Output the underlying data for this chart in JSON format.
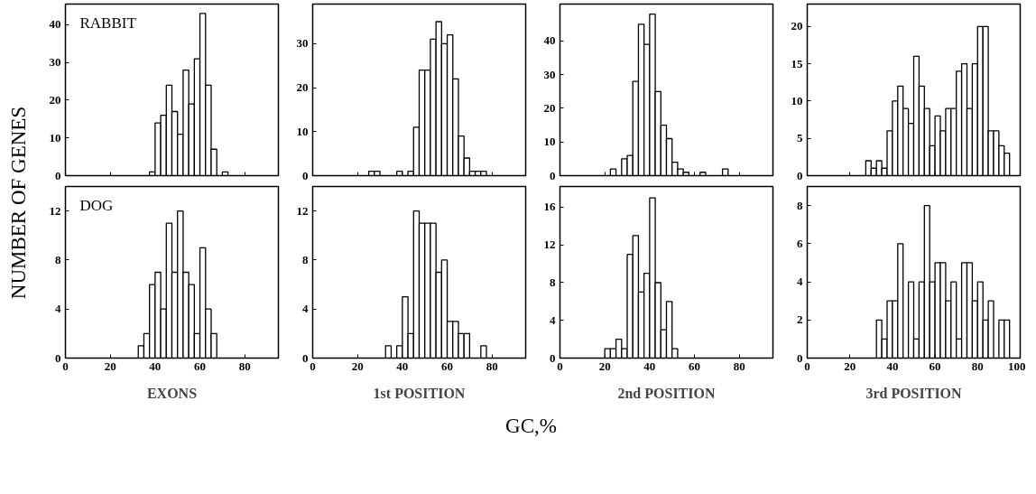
{
  "chart_data": [
    {
      "type": "histogram",
      "ylabel": "NUMBER OF GENES",
      "annotations": [
        "RABBIT"
      ],
      "bins": [
        37.5,
        40,
        42.5,
        45,
        47.5,
        50,
        52.5,
        55,
        57.5,
        60,
        62.5,
        65,
        67.5,
        70,
        72.5
      ],
      "values": [
        1,
        14,
        16,
        24,
        17,
        11,
        28,
        19,
        31,
        43,
        24,
        7,
        0,
        1
      ],
      "xlim": [
        0,
        95
      ],
      "ylim": [
        0,
        45.5
      ],
      "xticks": [
        0,
        20,
        40,
        60,
        80
      ],
      "yticks": [
        0,
        10,
        20,
        30,
        40
      ],
      "tick_labels": "y",
      "color": "#ffffff"
    },
    {
      "type": "histogram",
      "bins": [
        25,
        27.5,
        30,
        32.5,
        35,
        37.5,
        40,
        42.5,
        45,
        47.5,
        50,
        52.5,
        55,
        57.5,
        60,
        62.5,
        65,
        67.5,
        70,
        72.5,
        75,
        77.5
      ],
      "values": [
        1,
        1,
        0,
        0,
        0,
        1,
        0,
        1,
        11,
        24,
        24,
        31,
        35,
        30,
        32,
        22,
        9,
        4,
        1,
        1,
        1
      ],
      "xlim": [
        0,
        95
      ],
      "ylim": [
        0,
        39
      ],
      "xticks": [
        0,
        20,
        40,
        60,
        80
      ],
      "yticks": [
        0,
        10,
        20,
        30
      ],
      "tick_labels": "y",
      "color": "#ffffff"
    },
    {
      "type": "histogram",
      "bins": [
        22.5,
        25,
        27.5,
        30,
        32.5,
        35,
        37.5,
        40,
        42.5,
        45,
        47.5,
        50,
        52.5,
        55,
        57.5,
        60,
        62.5,
        65,
        67.5,
        70,
        72.5,
        75
      ],
      "values": [
        2,
        0,
        5,
        6,
        28,
        45,
        39,
        48,
        25,
        15,
        11,
        4,
        2,
        1,
        0,
        0,
        1,
        0,
        0,
        0,
        2
      ],
      "xlim": [
        0,
        95
      ],
      "ylim": [
        0,
        51
      ],
      "xticks": [
        0,
        20,
        40,
        60,
        80
      ],
      "yticks": [
        0,
        10,
        20,
        30,
        40
      ],
      "tick_labels": "y",
      "color": "#ffffff"
    },
    {
      "type": "histogram",
      "bins": [
        27.5,
        30,
        32.5,
        35,
        37.5,
        40,
        42.5,
        45,
        47.5,
        50,
        52.5,
        55,
        57.5,
        60,
        62.5,
        65,
        67.5,
        70,
        72.5,
        75,
        77.5,
        80,
        82.5,
        85,
        87.5,
        90,
        92.5,
        95
      ],
      "values": [
        2,
        1,
        2,
        1,
        6,
        10,
        12,
        9,
        7,
        16,
        12,
        9,
        4,
        8,
        6,
        9,
        9,
        14,
        15,
        9,
        15,
        20,
        20,
        6,
        6,
        4,
        3
      ],
      "xlim": [
        0,
        100
      ],
      "ylim": [
        0,
        23
      ],
      "xticks": [
        0,
        20,
        40,
        60,
        80,
        100
      ],
      "yticks": [
        0,
        5,
        10,
        15,
        20
      ],
      "tick_labels": "y",
      "color": "#ffffff"
    },
    {
      "type": "histogram",
      "xlabel": "EXONS",
      "annotations": [
        "DOG",
        "GC,%"
      ],
      "bins": [
        32.5,
        35,
        37.5,
        40,
        42.5,
        45,
        47.5,
        50,
        52.5,
        55,
        57.5,
        60,
        62.5,
        65,
        67.5
      ],
      "values": [
        1,
        2,
        6,
        7,
        4,
        11,
        7,
        12,
        7,
        6,
        2,
        9,
        4,
        2
      ],
      "xlim": [
        0,
        95
      ],
      "ylim": [
        0,
        14
      ],
      "xticks": [
        0,
        20,
        40,
        60,
        80
      ],
      "yticks": [
        0,
        4,
        8,
        12
      ],
      "color": "#ffffff"
    },
    {
      "type": "histogram",
      "xlabel": "1st POSITION",
      "bins": [
        32.5,
        35,
        37.5,
        40,
        42.5,
        45,
        47.5,
        50,
        52.5,
        55,
        57.5,
        60,
        62.5,
        65,
        67.5,
        70,
        72.5,
        75,
        77.5
      ],
      "values": [
        1,
        0,
        1,
        5,
        2,
        12,
        11,
        11,
        11,
        7,
        8,
        3,
        3,
        2,
        2,
        0,
        0,
        1
      ],
      "xlim": [
        0,
        95
      ],
      "ylim": [
        0,
        14
      ],
      "xticks": [
        0,
        20,
        40,
        60,
        80
      ],
      "yticks": [
        0,
        4,
        8,
        12
      ],
      "color": "#ffffff"
    },
    {
      "type": "histogram",
      "xlabel": "2nd POSITION",
      "bins": [
        20,
        22.5,
        25,
        27.5,
        30,
        32.5,
        35,
        37.5,
        40,
        42.5,
        45,
        47.5,
        50,
        52.5
      ],
      "values": [
        1,
        1,
        2,
        1,
        11,
        13,
        7,
        9,
        17,
        8,
        3,
        6,
        1
      ],
      "xlim": [
        0,
        95
      ],
      "ylim": [
        0,
        18.2
      ],
      "xticks": [
        0,
        20,
        40,
        60,
        80
      ],
      "yticks": [
        0,
        4,
        8,
        12,
        16
      ],
      "color": "#ffffff"
    },
    {
      "type": "histogram",
      "xlabel": "3rd POSITION",
      "bins": [
        32.5,
        35,
        37.5,
        40,
        42.5,
        45,
        47.5,
        50,
        52.5,
        55,
        57.5,
        60,
        62.5,
        65,
        67.5,
        70,
        72.5,
        75,
        77.5,
        80,
        82.5,
        85,
        87.5,
        90,
        92.5,
        95
      ],
      "values": [
        2,
        1,
        3,
        3,
        6,
        0,
        4,
        1,
        4,
        8,
        4,
        5,
        5,
        3,
        4,
        1,
        5,
        5,
        3,
        4,
        2,
        3,
        0,
        2,
        2
      ],
      "xlim": [
        0,
        100
      ],
      "ylim": [
        0,
        9
      ],
      "xticks": [
        0,
        20,
        40,
        60,
        80,
        100
      ],
      "yticks": [
        0,
        2,
        4,
        6,
        8
      ],
      "color": "#ffffff"
    }
  ]
}
